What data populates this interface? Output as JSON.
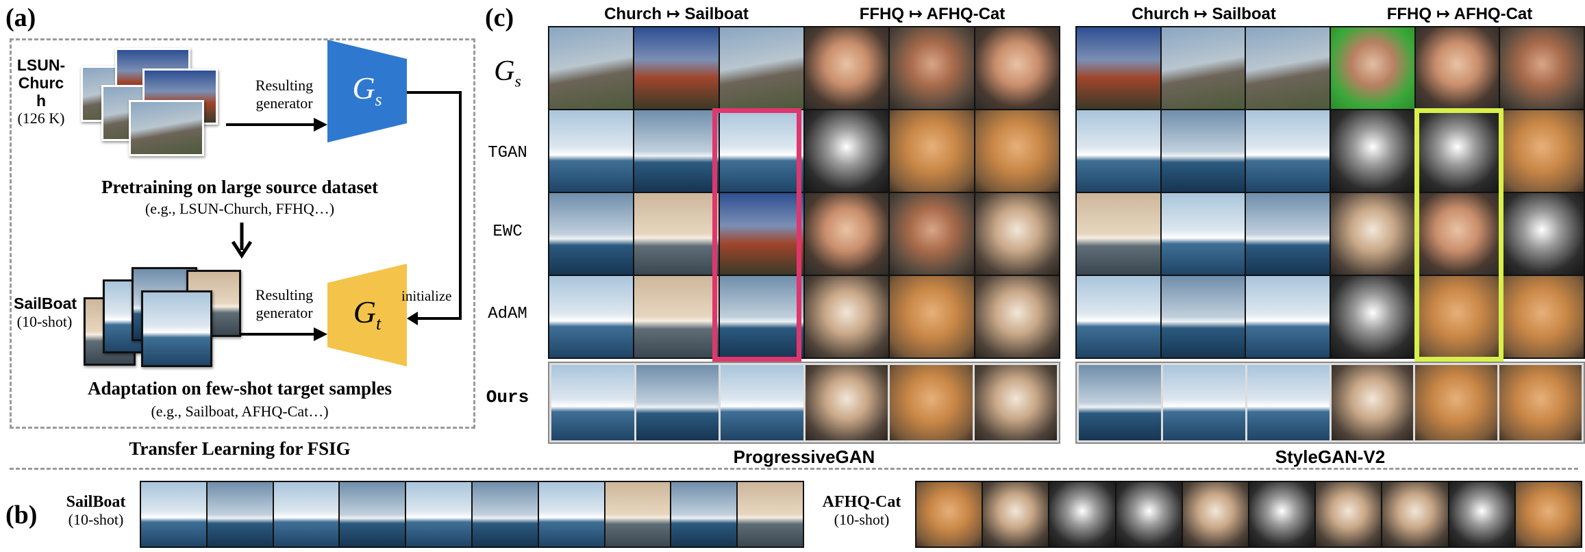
{
  "panel_a": {
    "tag": "(a)",
    "source_dataset": "LSUN-Church",
    "source_size": "(126 K)",
    "resulting_generator_1": "Resulting generator",
    "gs_symbol": "G",
    "gs_sub": "s",
    "pretrain_title": "Pretraining on large source dataset",
    "pretrain_examples": "(e.g., LSUN-Church, FFHQ…)",
    "target_dataset": "SailBoat",
    "target_shots": "(10-shot)",
    "resulting_generator_2": "Resulting generator",
    "initialize": "initialize",
    "gt_symbol": "G",
    "gt_sub": "t",
    "adapt_title": "Adaptation on few-shot target samples",
    "adapt_examples": "(e.g., Sailboat, AFHQ-Cat…)",
    "footer": "Transfer Learning for FSIG",
    "colors": {
      "gs": "#2f78cf",
      "gt": "#f4c34a"
    }
  },
  "panel_c": {
    "tag": "(c)",
    "left_heads": [
      "Church ↦ Sailboat",
      "FFHQ  ↦ AFHQ-Cat"
    ],
    "right_heads": [
      "Church ↦ Sailboat",
      "FFHQ  ↦ AFHQ-Cat"
    ],
    "row_labels": {
      "gs_symbol": "G",
      "gs_sub": "s",
      "tgan": "TGAN",
      "ewc": "EWC",
      "adam": "AdAM",
      "ours": "Ours"
    },
    "left_model": "ProgressiveGAN",
    "right_model": "StyleGAN-V2",
    "highlight_colors": {
      "left": "#e0366e",
      "right": "#d8f04a"
    }
  },
  "panel_b": {
    "tag": "(b)",
    "sailboat_name": "SailBoat",
    "sailboat_shots": "(10-shot)",
    "cat_name": "AFHQ-Cat",
    "cat_shots": "(10-shot)"
  }
}
